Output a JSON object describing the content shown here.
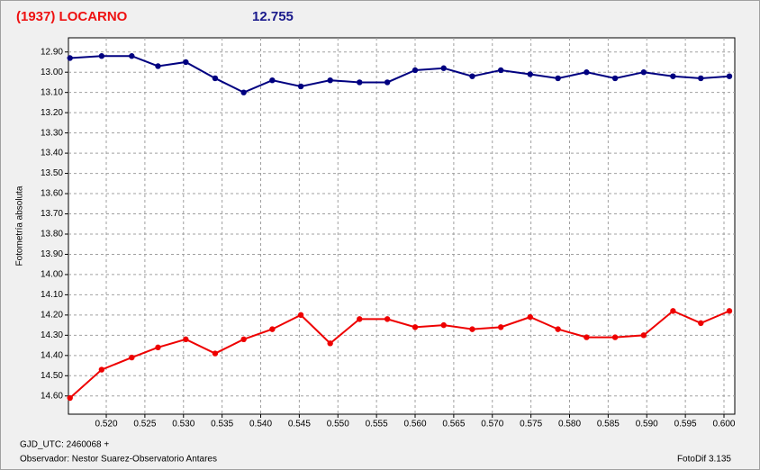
{
  "chart_data": {
    "type": "line",
    "title": "(1937) LOCARNO",
    "subtitle": "12.755",
    "y_label": "Fotometría absoluta",
    "footer_left": "GJD_UTC: 2460068 +",
    "footer_observer": "Observador: Nestor Suarez-Observatorio Antares",
    "footer_right": "FotoDif 3.135",
    "x": [
      0.5153,
      0.5194,
      0.5233,
      0.5267,
      0.5303,
      0.5341,
      0.5378,
      0.5415,
      0.5452,
      0.549,
      0.5528,
      0.5564,
      0.56,
      0.5637,
      0.5674,
      0.5711,
      0.5749,
      0.5785,
      0.5822,
      0.5859,
      0.5896,
      0.5934,
      0.597,
      0.6007
    ],
    "series": [
      {
        "color": "#000080",
        "values": [
          12.93,
          12.92,
          12.92,
          12.97,
          12.95,
          13.03,
          13.1,
          13.04,
          13.07,
          13.04,
          13.05,
          13.05,
          12.99,
          12.98,
          13.02,
          12.99,
          13.01,
          13.03,
          13.0,
          13.03,
          13.0,
          13.02,
          13.03,
          13.02
        ]
      },
      {
        "color": "#ee0000",
        "values": [
          14.61,
          14.47,
          14.41,
          14.36,
          14.32,
          14.39,
          14.32,
          14.27,
          14.2,
          14.34,
          14.22,
          14.22,
          14.26,
          14.25,
          14.27,
          14.26,
          14.21,
          14.27,
          14.31,
          14.31,
          14.3,
          14.18,
          14.24,
          14.18
        ]
      }
    ],
    "xlim": [
      0.5151,
      0.6014
    ],
    "ylim": [
      12.83,
      14.69
    ],
    "y_inverted": true,
    "grid": true,
    "xticks": [
      {
        "value": 0.52,
        "label": "0.520"
      },
      {
        "value": 0.525,
        "label": "0.525"
      },
      {
        "value": 0.53,
        "label": "0.530"
      },
      {
        "value": 0.535,
        "label": "0.535"
      },
      {
        "value": 0.54,
        "label": "0.540"
      },
      {
        "value": 0.545,
        "label": "0.545"
      },
      {
        "value": 0.55,
        "label": "0.550"
      },
      {
        "value": 0.555,
        "label": "0.555"
      },
      {
        "value": 0.56,
        "label": "0.560"
      },
      {
        "value": 0.565,
        "label": "0.565"
      },
      {
        "value": 0.57,
        "label": "0.570"
      },
      {
        "value": 0.575,
        "label": "0.575"
      },
      {
        "value": 0.58,
        "label": "0.580"
      },
      {
        "value": 0.585,
        "label": "0.585"
      },
      {
        "value": 0.59,
        "label": "0.590"
      },
      {
        "value": 0.595,
        "label": "0.595"
      },
      {
        "value": 0.6,
        "label": "0.600"
      }
    ],
    "yticks": [
      {
        "value": 12.9,
        "label": "12.90"
      },
      {
        "value": 13.0,
        "label": "13.00"
      },
      {
        "value": 13.1,
        "label": "13.10"
      },
      {
        "value": 13.2,
        "label": "13.20"
      },
      {
        "value": 13.3,
        "label": "13.30"
      },
      {
        "value": 13.4,
        "label": "13.40"
      },
      {
        "value": 13.5,
        "label": "13.50"
      },
      {
        "value": 13.6,
        "label": "13.60"
      },
      {
        "value": 13.7,
        "label": "13.70"
      },
      {
        "value": 13.8,
        "label": "13.80"
      },
      {
        "value": 13.9,
        "label": "13.90"
      },
      {
        "value": 14.0,
        "label": "14.00"
      },
      {
        "value": 14.1,
        "label": "14.10"
      },
      {
        "value": 14.2,
        "label": "14.20"
      },
      {
        "value": 14.3,
        "label": "14.30"
      },
      {
        "value": 14.4,
        "label": "14.40"
      },
      {
        "value": 14.5,
        "label": "14.50"
      },
      {
        "value": 14.6,
        "label": "14.60"
      }
    ]
  }
}
